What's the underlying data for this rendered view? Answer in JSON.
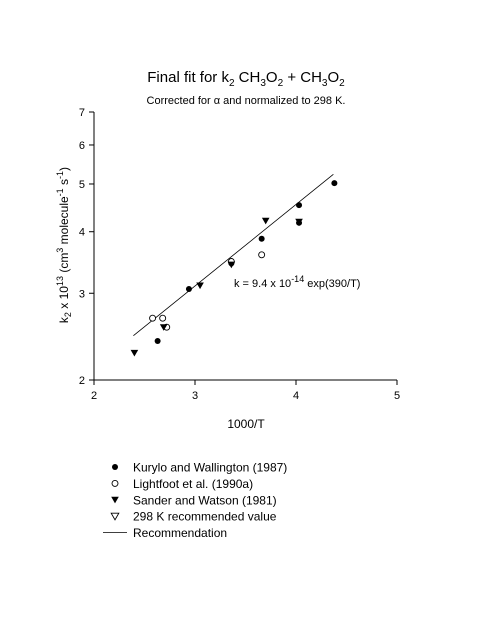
{
  "chart_data": {
    "type": "scatter",
    "title": {
      "main": "Final fit for k",
      "sub2": "2",
      "a": " CH",
      "sub3a": "3",
      "b": "O",
      "sub2a": "2",
      "c": " + CH",
      "sub3b": "3",
      "d": "O",
      "sub2b": "2"
    },
    "subtitle": "Corrected for α and normalized to 298 K.",
    "xlabel": "1000/T",
    "ylabel": {
      "a": "k",
      "s1": "2",
      "b": " x 10",
      "p1": "13",
      "c": " (cm",
      "p2": "3",
      "d": " molecule",
      "p3": "-1",
      "e": " s",
      "p4": "-1",
      "f": ")"
    },
    "xlim": [
      2,
      5
    ],
    "ylim": [
      2,
      7
    ],
    "y_scale": "log",
    "x_ticks": [
      "2",
      "3",
      "4",
      "5"
    ],
    "y_ticks": [
      "2",
      "3",
      "4",
      "5",
      "6",
      "7"
    ],
    "series": [
      {
        "name": "Kurylo and Wallington (1987)",
        "marker": "filled-circle",
        "points": [
          [
            2.63,
            2.4
          ],
          [
            2.94,
            3.06
          ],
          [
            3.36,
            3.45
          ],
          [
            3.66,
            3.87
          ],
          [
            4.03,
            4.53
          ],
          [
            4.03,
            4.17
          ],
          [
            4.38,
            5.02
          ]
        ]
      },
      {
        "name": "Lightfoot et al. (1990a)",
        "marker": "open-circle",
        "points": [
          [
            2.58,
            2.67
          ],
          [
            2.68,
            2.67
          ],
          [
            2.72,
            2.56
          ],
          [
            3.36,
            3.48
          ],
          [
            3.66,
            3.59
          ]
        ]
      },
      {
        "name": "Sander and Watson (1981)",
        "marker": "filled-triangle-down",
        "points": [
          [
            2.4,
            2.27
          ],
          [
            2.69,
            2.56
          ],
          [
            3.05,
            3.11
          ],
          [
            3.36,
            3.43
          ],
          [
            3.7,
            4.21
          ],
          [
            4.03,
            4.19
          ]
        ]
      },
      {
        "name": "298 K recommended value",
        "marker": "open-triangle-down",
        "points": []
      },
      {
        "name": "Recommendation",
        "marker": "line",
        "line": [
          [
            2.39,
            2.46
          ],
          [
            4.37,
            5.23
          ]
        ]
      }
    ],
    "annotation": {
      "a": "k = 9.4 x 10",
      "p": "-14",
      "b": " exp(390/T)"
    },
    "legend_placement": "below"
  }
}
